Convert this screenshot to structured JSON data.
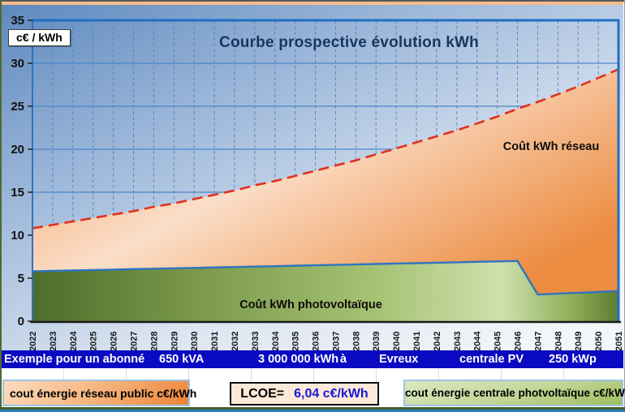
{
  "chart": {
    "title": "Courbe prospective évolution kWh",
    "y_axis_unit_label": "c€ / kWh",
    "area_label_reseau": "Coût kWh réseau",
    "area_label_pv": "Coût kWh photovoltaïque"
  },
  "chart_data": {
    "type": "area",
    "title": "Courbe prospective évolution kWh",
    "ylabel": "c€ / kWh",
    "ylim": [
      0,
      35
    ],
    "yticks": [
      0,
      5,
      10,
      15,
      20,
      25,
      30,
      35
    ],
    "grid": "horizontal-solid-and-vertical-dashed",
    "legend_position": "none",
    "x": [
      2022,
      2023,
      2024,
      2025,
      2026,
      2027,
      2028,
      2029,
      2030,
      2031,
      2032,
      2033,
      2034,
      2035,
      2036,
      2037,
      2038,
      2039,
      2040,
      2041,
      2042,
      2043,
      2044,
      2045,
      2046,
      2047,
      2048,
      2049,
      2050,
      2051
    ],
    "series": [
      {
        "name": "Coût kWh réseau",
        "line_style": "red-dashed",
        "line_color": "#e0301e",
        "fill": "orange-gradient",
        "values": [
          10.8,
          11.2,
          11.6,
          12.0,
          12.4,
          12.8,
          13.3,
          13.7,
          14.2,
          14.7,
          15.2,
          15.8,
          16.3,
          16.9,
          17.5,
          18.1,
          18.7,
          19.4,
          20.1,
          20.8,
          21.5,
          22.2,
          23.0,
          23.8,
          24.7,
          25.5,
          26.4,
          27.3,
          28.3,
          29.3
        ]
      },
      {
        "name": "Coût kWh photovoltaïque",
        "line_style": "blue-solid",
        "line_color": "#2e74c0",
        "fill": "green-gradient",
        "values": [
          5.8,
          5.85,
          5.9,
          5.95,
          6.0,
          6.05,
          6.1,
          6.15,
          6.2,
          6.25,
          6.3,
          6.35,
          6.4,
          6.45,
          6.5,
          6.55,
          6.6,
          6.65,
          6.7,
          6.75,
          6.8,
          6.85,
          6.9,
          6.95,
          7.0,
          3.1,
          3.2,
          3.3,
          3.4,
          3.5
        ]
      }
    ],
    "annotations": [
      "Coût kWh réseau",
      "Coût kWh photovoltaïque"
    ]
  },
  "info_bar": {
    "items": [
      {
        "text": "Exemple pour un abonné"
      },
      {
        "text": "650 kVA"
      },
      {
        "text": "3 000 000 kWh"
      },
      {
        "text": "à"
      },
      {
        "text": "Evreux"
      },
      {
        "text": "centrale PV"
      },
      {
        "text": "250 kWp"
      }
    ]
  },
  "legend": {
    "reseau_label": "cout énergie réseau public c€/kWh",
    "lcoe_label": "LCOE=",
    "lcoe_value": "6,04 c€/kWh",
    "pv_label": "cout énergie centrale photvoltaïque c€/kWh"
  },
  "colors": {
    "band_blue": "#0a0ac2",
    "lcoe_value_blue": "#1919d4",
    "title_navy": "#17375e",
    "red_dashed": "#e0301e",
    "pv_line_blue": "#2e74c0"
  }
}
